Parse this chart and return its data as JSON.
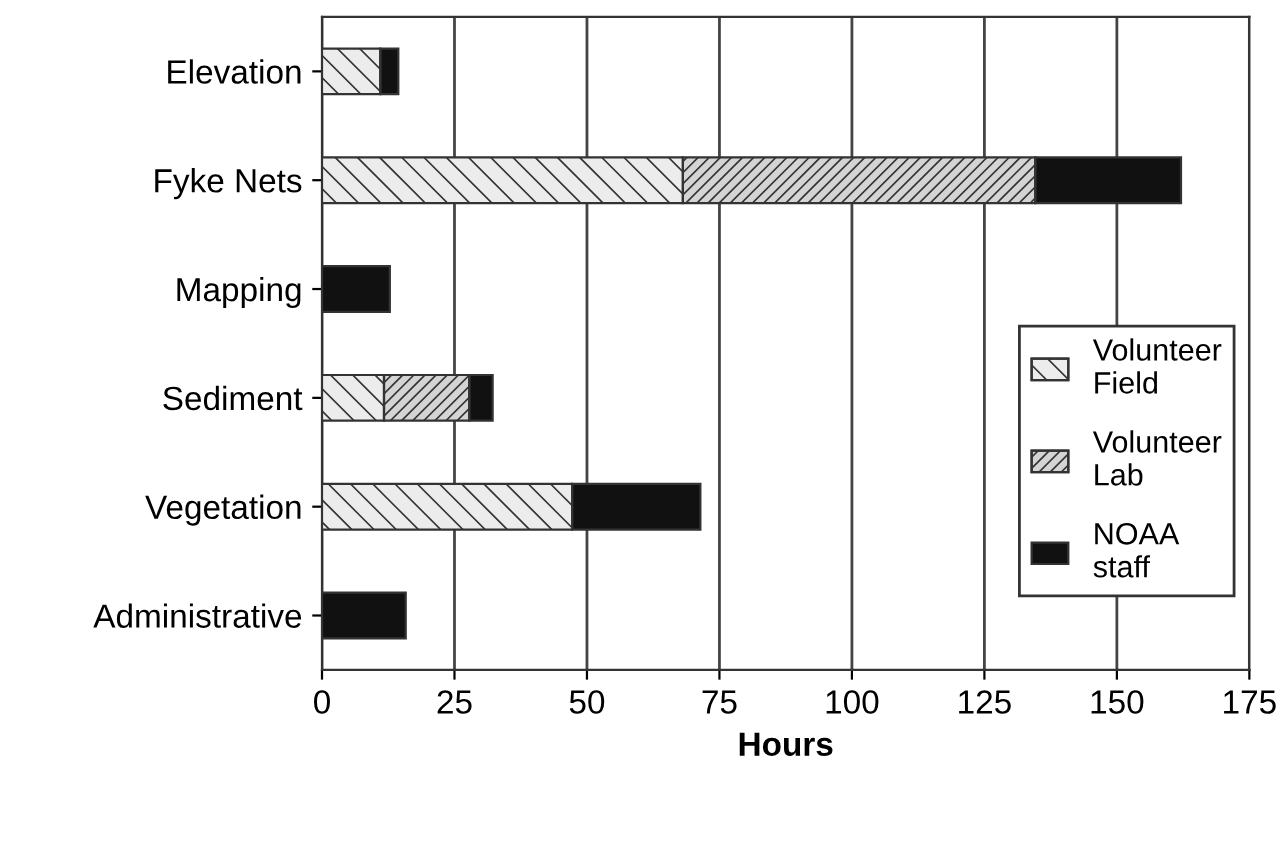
{
  "chart_data": {
    "type": "bar",
    "orientation": "horizontal",
    "stacked": true,
    "xlabel": "Hours",
    "categories": [
      "Elevation",
      "Fyke Nets",
      "Mapping",
      "Sediment",
      "Vegetation",
      "Administrative"
    ],
    "series": [
      {
        "name": "Volunteer Field",
        "color": "#ececec",
        "values": [
          11.0,
          68.1,
          null,
          11.7,
          47.2,
          null
        ]
      },
      {
        "name": "Volunteer Lab",
        "color": "#d4d4d4",
        "values": [
          null,
          66.5,
          null,
          16.1,
          null,
          null
        ]
      },
      {
        "name": "NOAA staff",
        "color": "#111111",
        "values": [
          3.4,
          27.5,
          12.8,
          4.4,
          24.2,
          15.8
        ]
      }
    ],
    "xlim": [
      0,
      175
    ],
    "xticks": [
      0,
      25,
      50,
      75,
      100,
      125,
      150,
      175
    ],
    "grid": "x",
    "legend": "right"
  }
}
